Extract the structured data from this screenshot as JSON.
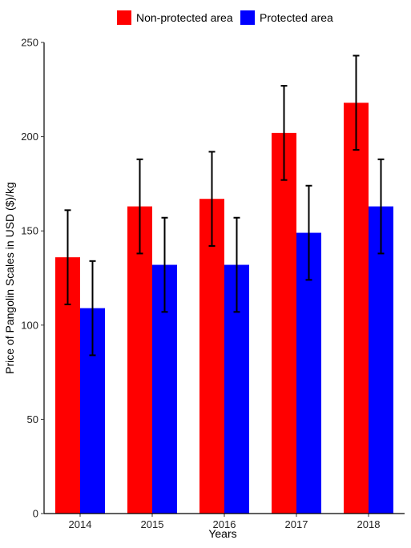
{
  "chart_data": {
    "type": "bar",
    "categories": [
      "2014",
      "2015",
      "2016",
      "2017",
      "2018"
    ],
    "series": [
      {
        "name": "Non-protected area",
        "color": "#ff0000",
        "values": [
          136,
          163,
          167,
          202,
          218
        ],
        "error_low": [
          111,
          138,
          142,
          177,
          193
        ],
        "error_high": [
          161,
          188,
          192,
          227,
          243
        ]
      },
      {
        "name": "Protected area",
        "color": "#0000ff",
        "values": [
          109,
          132,
          132,
          149,
          163
        ],
        "error_low": [
          84,
          107,
          107,
          124,
          138
        ],
        "error_high": [
          134,
          157,
          157,
          174,
          188
        ]
      }
    ],
    "title": "",
    "xlabel": "Years",
    "ylabel": "Price of Pangolin Scales in USD ($)/kg",
    "ylim": [
      0,
      250
    ],
    "yticks": [
      0,
      50,
      100,
      150,
      200,
      250
    ],
    "grid": false,
    "legend_position": "top"
  }
}
